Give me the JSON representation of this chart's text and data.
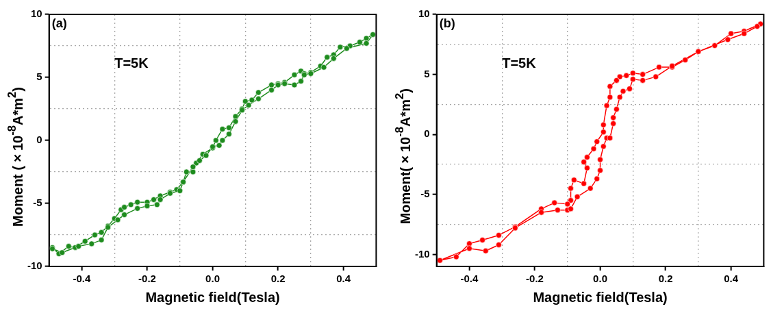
{
  "chart_data": [
    {
      "type": "line",
      "xlabel": "Magnetic field(Tesla)",
      "ylabel": "Moment (×10$^{-8}$A*m$^{2}$)",
      "annotations": [
        "(a)",
        "T=5K"
      ],
      "marker": "circle",
      "line_style": "solid",
      "grid": true,
      "xlim": [
        -0.5,
        0.5
      ],
      "ylim": [
        -10,
        10
      ],
      "xticks": [
        {
          "value": -0.4,
          "label": "-0.4"
        },
        {
          "value": -0.3,
          "label": null
        },
        {
          "value": -0.2,
          "label": "-0.2"
        },
        {
          "value": -0.1,
          "label": null
        },
        {
          "value": 0,
          "label": "0.0"
        },
        {
          "value": 0.1,
          "label": null
        },
        {
          "value": 0.2,
          "label": "0.2"
        },
        {
          "value": 0.3,
          "label": null
        },
        {
          "value": 0.4,
          "label": "0.4"
        }
      ],
      "yticks": [
        -10,
        {
          "value": -7.5,
          "label": null
        },
        -5,
        {
          "value": -2.5,
          "label": null
        },
        0,
        {
          "value": 2.5,
          "label": null
        },
        5,
        {
          "value": 7.5,
          "label": null
        },
        10
      ],
      "series": [
        {
          "color": "#1e8c1e",
          "x": [
            -0.49,
            -0.47,
            -0.44,
            -0.42,
            -0.39,
            -0.36,
            -0.34,
            -0.32,
            -0.3,
            -0.28,
            -0.27,
            -0.25,
            -0.23,
            -0.2,
            -0.18,
            -0.16,
            -0.13,
            -0.11,
            -0.09,
            -0.08,
            -0.06,
            -0.05,
            -0.03,
            0.0,
            0.01,
            0.03,
            0.05,
            0.07,
            0.09,
            0.1,
            0.12,
            0.14,
            0.18,
            0.2,
            0.22,
            0.25,
            0.27,
            0.28,
            0.3,
            0.33,
            0.35,
            0.37,
            0.39,
            0.42,
            0.45,
            0.47,
            0.49,
            0.47,
            0.41,
            0.37,
            0.34,
            0.3,
            0.28,
            0.27,
            0.25,
            0.22,
            0.2,
            0.18,
            0.14,
            0.11,
            0.09,
            0.07,
            0.05,
            0.03,
            0.02,
            0.0,
            -0.02,
            -0.04,
            -0.06,
            -0.09,
            -0.1,
            -0.13,
            -0.16,
            -0.17,
            -0.2,
            -0.23,
            -0.27,
            -0.29,
            -0.32,
            -0.34,
            -0.37,
            -0.41,
            -0.46,
            -0.49
          ],
          "values": [
            -8.5,
            -9.0,
            -8.4,
            -8.5,
            -8.0,
            -7.5,
            -7.3,
            -6.8,
            -6.2,
            -5.5,
            -5.3,
            -5.1,
            -4.9,
            -4.9,
            -4.7,
            -4.4,
            -4.1,
            -3.9,
            -3.3,
            -2.5,
            -2.5,
            -1.8,
            -1.1,
            -0.6,
            0.0,
            0.9,
            1.0,
            1.9,
            2.5,
            3.1,
            3.2,
            3.8,
            4.4,
            4.5,
            4.6,
            5.2,
            5.5,
            5.3,
            5.4,
            5.9,
            6.6,
            6.8,
            7.4,
            7.5,
            7.8,
            8.1,
            8.4,
            7.7,
            7.3,
            6.5,
            5.8,
            5.3,
            5.2,
            4.7,
            4.4,
            4.5,
            4.4,
            4.0,
            3.3,
            2.8,
            2.4,
            1.5,
            0.5,
            0.0,
            -0.4,
            -0.5,
            -1.2,
            -1.6,
            -2.1,
            -3.3,
            -4.0,
            -4.2,
            -4.7,
            -5.1,
            -5.2,
            -5.4,
            -5.9,
            -6.3,
            -6.9,
            -7.9,
            -8.2,
            -8.4,
            -8.9,
            -8.6
          ]
        }
      ]
    },
    {
      "type": "line",
      "xlabel": "Magnetic field(Tesla)",
      "ylabel": "Moment(×10$^{-8}$A*m$^{2}$)",
      "annotations": [
        "(b)",
        "T=5K"
      ],
      "marker": "circle",
      "line_style": "solid",
      "grid": true,
      "xlim": [
        -0.5,
        0.5
      ],
      "ylim": [
        -11,
        10
      ],
      "xticks": [
        {
          "value": -0.4,
          "label": "-0.4"
        },
        {
          "value": -0.3,
          "label": null
        },
        {
          "value": -0.2,
          "label": "-0.2"
        },
        {
          "value": -0.1,
          "label": null
        },
        {
          "value": 0,
          "label": "0.0"
        },
        {
          "value": 0.1,
          "label": null
        },
        {
          "value": 0.2,
          "label": "0.2"
        },
        {
          "value": 0.3,
          "label": null
        },
        {
          "value": 0.4,
          "label": "0.4"
        }
      ],
      "yticks": [
        -10,
        {
          "value": -7.5,
          "label": null
        },
        -5,
        {
          "value": -2.5,
          "label": null
        },
        0,
        {
          "value": 2.5,
          "label": null
        },
        5,
        {
          "value": 7.5,
          "label": null
        },
        10
      ],
      "series": [
        {
          "color": "#ff0000",
          "x": [
            0.49,
            0.44,
            0.4,
            0.35,
            0.3,
            0.26,
            0.22,
            0.18,
            0.13,
            0.1,
            0.08,
            0.06,
            0.05,
            0.03,
            0.03,
            0.02,
            0.01,
            0.01,
            -0.01,
            -0.02,
            -0.04,
            -0.05,
            -0.04,
            -0.05,
            -0.08,
            -0.09,
            -0.09,
            -0.1,
            -0.14,
            -0.18,
            -0.26,
            -0.31,
            -0.36,
            -0.4,
            -0.44,
            -0.49,
            -0.4,
            -0.35,
            -0.31,
            -0.26,
            -0.18,
            -0.13,
            -0.1,
            -0.09,
            -0.07,
            -0.03,
            -0.01,
            0.0,
            0.0,
            0.01,
            0.02,
            0.03,
            0.04,
            0.04,
            0.05,
            0.06,
            0.07,
            0.09,
            0.1,
            0.13,
            0.17,
            0.22,
            0.3,
            0.39,
            0.44,
            0.48
          ],
          "values": [
            9.2,
            8.6,
            8.4,
            7.4,
            6.9,
            6.2,
            5.6,
            5.6,
            5.0,
            5.1,
            4.9,
            4.8,
            4.5,
            4.0,
            3.1,
            2.4,
            0.8,
            0.2,
            -0.6,
            -1.2,
            -1.9,
            -2.3,
            -2.8,
            -4.1,
            -3.8,
            -4.5,
            -5.5,
            -5.8,
            -5.7,
            -6.2,
            -7.7,
            -8.4,
            -8.8,
            -9.1,
            -10.2,
            -10.5,
            -9.5,
            -9.7,
            -9.2,
            -7.8,
            -6.5,
            -6.3,
            -6.3,
            -6.2,
            -5.2,
            -4.5,
            -3.7,
            -3.0,
            -2.1,
            -1.0,
            -0.3,
            -0.3,
            0.9,
            1.4,
            2.1,
            3.1,
            3.6,
            3.8,
            4.6,
            4.5,
            4.8,
            5.7,
            6.9,
            7.9,
            8.4,
            9.0
          ]
        }
      ]
    }
  ]
}
